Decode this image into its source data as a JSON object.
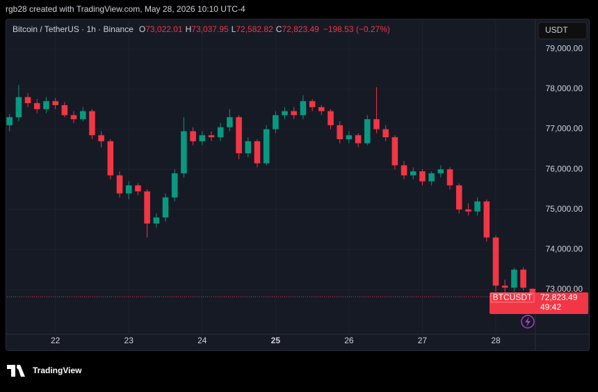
{
  "header": {
    "credit": "rgb28 created with TradingView.com, May 28, 2026 10:10 UTC-4"
  },
  "legend": {
    "title": "Bitcoin / TetherUS · 1h · Binance",
    "items": [
      {
        "key": "O",
        "value": "73,022.01"
      },
      {
        "key": "H",
        "value": "73,037.95"
      },
      {
        "key": "L",
        "value": "72,582.82"
      },
      {
        "key": "C",
        "value": "72,823.49"
      }
    ],
    "change": "−198.53 (−0.27%)"
  },
  "currency_button": "USDT",
  "price_label": {
    "symbol": "BTCUSDT",
    "price": "72,823.49",
    "countdown": "49:42"
  },
  "brand": "TradingView",
  "chart_data": {
    "type": "candlestick",
    "up_color": "#089981",
    "down_color": "#f23645",
    "xlim": [
      21.34,
      28.54
    ],
    "xticks": [
      22,
      23,
      24,
      25,
      26,
      27,
      28
    ],
    "ylim": [
      71890,
      79700
    ],
    "yticks": [
      {
        "value": 73000,
        "label": "73,000.00"
      },
      {
        "value": 74000,
        "label": "74,000.00"
      },
      {
        "value": 75000,
        "label": "75,000.00"
      },
      {
        "value": 76000,
        "label": "76,000.00"
      },
      {
        "value": 77000,
        "label": "77,000.00"
      },
      {
        "value": 78000,
        "label": "78,000.00"
      },
      {
        "value": 79000,
        "label": "79,000.00"
      }
    ],
    "x": [
      21.375,
      21.5,
      21.625,
      21.75,
      21.875,
      22,
      22.125,
      22.25,
      22.375,
      22.5,
      22.625,
      22.75,
      22.875,
      23,
      23.125,
      23.25,
      23.375,
      23.5,
      23.625,
      23.75,
      23.875,
      24,
      24.125,
      24.25,
      24.375,
      24.5,
      24.625,
      24.75,
      24.875,
      25,
      25.125,
      25.25,
      25.375,
      25.5,
      25.625,
      25.75,
      25.875,
      26,
      26.125,
      26.25,
      26.375,
      26.5,
      26.625,
      26.75,
      26.875,
      27,
      27.125,
      27.25,
      27.375,
      27.5,
      27.625,
      27.75,
      27.875,
      28,
      28.125,
      28.25,
      28.375,
      28.5
    ],
    "open": [
      77100,
      77300,
      77800,
      77650,
      77500,
      77700,
      77600,
      77350,
      77250,
      77450,
      76850,
      76700,
      75850,
      75400,
      75600,
      75450,
      74650,
      74800,
      75300,
      75900,
      76950,
      76700,
      76850,
      76800,
      77050,
      77300,
      76400,
      76700,
      76150,
      77000,
      77350,
      77450,
      77350,
      77700,
      77550,
      77450,
      77100,
      76750,
      76850,
      76650,
      77250,
      77000,
      76800,
      76100,
      75850,
      75950,
      75700,
      75900,
      76000,
      75600,
      75000,
      74950,
      75200,
      74300,
      73100,
      73050,
      73500,
      73022.01
    ],
    "high": [
      77380,
      78100,
      77900,
      77750,
      77800,
      77780,
      77680,
      77450,
      77550,
      77500,
      76950,
      76750,
      75950,
      75700,
      75650,
      75500,
      74900,
      75400,
      76000,
      77300,
      77050,
      76950,
      76950,
      77150,
      77500,
      77350,
      76800,
      76750,
      77100,
      77450,
      77550,
      77550,
      77850,
      77750,
      77600,
      77500,
      77200,
      76950,
      76900,
      77350,
      78050,
      77100,
      76850,
      76200,
      76050,
      76000,
      75950,
      76100,
      76050,
      75650,
      75150,
      75300,
      75250,
      74350,
      73250,
      73550,
      73560,
      73037.95
    ],
    "low": [
      76950,
      77200,
      77550,
      77400,
      77400,
      77500,
      77300,
      77150,
      77200,
      76750,
      76550,
      75750,
      75300,
      75250,
      75350,
      74300,
      74550,
      74700,
      75200,
      75800,
      76600,
      76600,
      76700,
      76700,
      76950,
      76250,
      76300,
      76050,
      76100,
      76900,
      77250,
      77250,
      77250,
      77450,
      77350,
      77000,
      76650,
      76650,
      76550,
      76600,
      76900,
      76700,
      76000,
      75750,
      75750,
      75600,
      75600,
      75800,
      75500,
      74900,
      74850,
      74850,
      74200,
      72950,
      72900,
      72950,
      72980,
      72582.82
    ],
    "close": [
      77300,
      77800,
      77650,
      77500,
      77700,
      77600,
      77350,
      77250,
      77450,
      76850,
      76700,
      75850,
      75400,
      75600,
      75450,
      74650,
      74800,
      75300,
      75900,
      76950,
      76700,
      76850,
      76800,
      77050,
      77300,
      76400,
      76700,
      76150,
      77000,
      77350,
      77450,
      77350,
      77700,
      77550,
      77450,
      77100,
      76750,
      76850,
      76650,
      77250,
      77000,
      76800,
      76100,
      75850,
      75950,
      75700,
      75900,
      76000,
      75600,
      75000,
      74950,
      75200,
      74300,
      73100,
      73050,
      73500,
      73050,
      72823.49
    ]
  }
}
